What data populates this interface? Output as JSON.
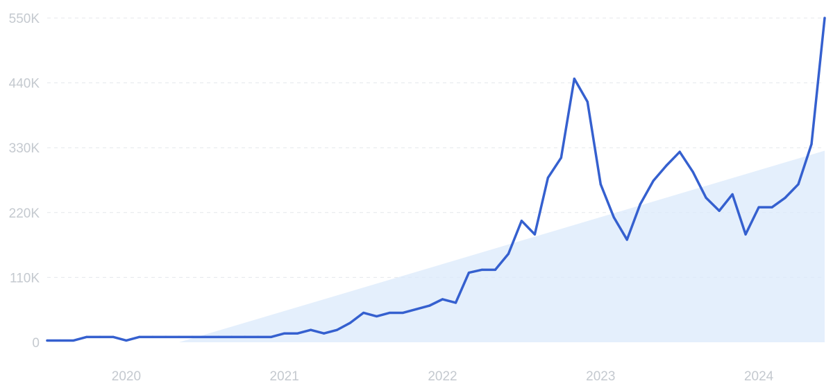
{
  "chart_data": {
    "type": "line",
    "title": "",
    "xlabel": "",
    "ylabel": "",
    "ylim": [
      0,
      550000
    ],
    "xlim": [
      "2019-07",
      "2024-06"
    ],
    "grid": true,
    "legend": "none",
    "colors": {
      "line": "#3560cf",
      "trend_fill": "#dbe9fb",
      "grid": "#e4e7eb",
      "tick_text": "#c4c9cf"
    },
    "y_ticks": [
      {
        "value": 0,
        "label": "0"
      },
      {
        "value": 110000,
        "label": "110K"
      },
      {
        "value": 220000,
        "label": "220K"
      },
      {
        "value": 330000,
        "label": "330K"
      },
      {
        "value": 440000,
        "label": "440K"
      },
      {
        "value": 550000,
        "label": "550K"
      }
    ],
    "x_ticks": [
      {
        "value": "2020-01",
        "label": "2020"
      },
      {
        "value": "2021-01",
        "label": "2021"
      },
      {
        "value": "2022-01",
        "label": "2022"
      },
      {
        "value": "2023-01",
        "label": "2023"
      },
      {
        "value": "2024-01",
        "label": "2024"
      }
    ],
    "trend": {
      "x": [
        "2020-05",
        "2024-06"
      ],
      "y": [
        0,
        325000
      ]
    },
    "series": [
      {
        "x": [
          "2019-07",
          "2019-08",
          "2019-09",
          "2019-10",
          "2019-11",
          "2019-12",
          "2020-01",
          "2020-02",
          "2020-03",
          "2020-04",
          "2020-05",
          "2020-06",
          "2020-07",
          "2020-08",
          "2020-09",
          "2020-10",
          "2020-11",
          "2020-12",
          "2021-01",
          "2021-02",
          "2021-03",
          "2021-04",
          "2021-05",
          "2021-06",
          "2021-07",
          "2021-08",
          "2021-09",
          "2021-10",
          "2021-11",
          "2021-12",
          "2022-01",
          "2022-02",
          "2022-03",
          "2022-04",
          "2022-05",
          "2022-06",
          "2022-07",
          "2022-08",
          "2022-09",
          "2022-10",
          "2022-11",
          "2022-12",
          "2023-01",
          "2023-02",
          "2023-03",
          "2023-04",
          "2023-05",
          "2023-06",
          "2023-07",
          "2023-08",
          "2023-09",
          "2023-10",
          "2023-11",
          "2023-12",
          "2024-01",
          "2024-02",
          "2024-03",
          "2024-04",
          "2024-05",
          "2024-06"
        ],
        "values": [
          3000,
          3000,
          3000,
          9000,
          9000,
          9000,
          3000,
          9000,
          9000,
          9000,
          9000,
          9000,
          9000,
          9000,
          9000,
          9000,
          9000,
          9000,
          15000,
          15000,
          21000,
          15000,
          21000,
          33000,
          50000,
          44000,
          50000,
          50000,
          56000,
          62000,
          73000,
          67000,
          118000,
          123000,
          123000,
          150000,
          206000,
          183000,
          279000,
          313000,
          447000,
          408000,
          268000,
          212000,
          174000,
          234000,
          274000,
          300000,
          323000,
          289000,
          245000,
          223000,
          251000,
          183000,
          229000,
          229000,
          245000,
          268000,
          336000,
          550000
        ]
      }
    ]
  }
}
